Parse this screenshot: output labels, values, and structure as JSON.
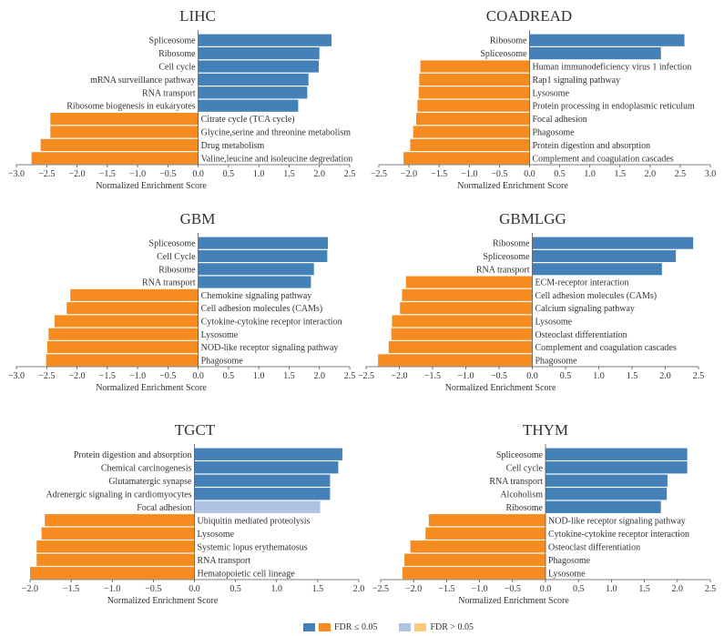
{
  "colors": {
    "pos_sig": "#4481b8",
    "neg_sig": "#f68b1f",
    "pos_nonsig": "#aec3e1",
    "neg_nonsig": "#fdcb78"
  },
  "legend": {
    "sig_label": "FDR ≤ 0.05",
    "nonsig_label": "FDR > 0.05"
  },
  "chart_data": [
    {
      "type": "bar",
      "orientation": "horizontal",
      "title": "LIHC",
      "xlabel": "Normalized Enrichment Score",
      "xlim": [
        -3.0,
        2.5
      ],
      "xticks": [
        "−3.0",
        "−2.5",
        "−2.0",
        "−1.5",
        "−1.0",
        "−0.5",
        "0.0",
        "0.5",
        "1.0",
        "1.5",
        "2.0",
        "2.5"
      ],
      "bars": [
        {
          "label": "Spliceosome",
          "value": 2.2,
          "significant": true
        },
        {
          "label": "Ribosome",
          "value": 2.0,
          "significant": true
        },
        {
          "label": "Cell cycle",
          "value": 1.99,
          "significant": true
        },
        {
          "label": "mRNA surveillance pathway",
          "value": 1.82,
          "significant": true
        },
        {
          "label": "RNA transport",
          "value": 1.8,
          "significant": true
        },
        {
          "label": "Ribosome biogenesis in eukaryotes",
          "value": 1.65,
          "significant": true
        },
        {
          "label": "Citrate cycle (TCA cycle)",
          "value": -2.44,
          "significant": true
        },
        {
          "label": "Glycine,serine and threonine metabolism",
          "value": -2.44,
          "significant": true
        },
        {
          "label": "Drug metabolism",
          "value": -2.6,
          "significant": true
        },
        {
          "label": "Valine,leucine and isoleucine degredation",
          "value": -2.75,
          "significant": true
        }
      ]
    },
    {
      "type": "bar",
      "orientation": "horizontal",
      "title": "COADREAD",
      "xlabel": "Normalized Enrichment Score",
      "xlim": [
        -2.5,
        3.0
      ],
      "xticks": [
        "−2.5",
        "−2.0",
        "−1.5",
        "−1.0",
        "−0.5",
        "0.0",
        "0.5",
        "1.0",
        "1.5",
        "2.0",
        "2.5",
        "3.0"
      ],
      "bars": [
        {
          "label": "Ribosome",
          "value": 2.57,
          "significant": true
        },
        {
          "label": "Spliceosome",
          "value": 2.18,
          "significant": true
        },
        {
          "label": "Human immunodeficiency virus 1 infection",
          "value": -1.81,
          "significant": true
        },
        {
          "label": "Rap1 signaling pathway",
          "value": -1.83,
          "significant": true
        },
        {
          "label": "Lysosome",
          "value": -1.84,
          "significant": true
        },
        {
          "label": "Protein processing in endoplasmic reticulum",
          "value": -1.86,
          "significant": true
        },
        {
          "label": "Focal adhesion",
          "value": -1.88,
          "significant": true
        },
        {
          "label": "Phagosome",
          "value": -1.93,
          "significant": true
        },
        {
          "label": "Protein digestion and absorption",
          "value": -1.98,
          "significant": true
        },
        {
          "label": "Complement and coagulation cascades",
          "value": -2.09,
          "significant": true
        }
      ]
    },
    {
      "type": "bar",
      "orientation": "horizontal",
      "title": "GBM",
      "xlabel": "Normalized Enrichment Score",
      "xlim": [
        -3.0,
        2.5
      ],
      "xticks": [
        "−3.0",
        "−2.5",
        "−2.0",
        "−1.5",
        "−1.0",
        "−0.5",
        "0.0",
        "0.5",
        "1.0",
        "1.5",
        "2.0",
        "2.5"
      ],
      "bars": [
        {
          "label": "Spliceosome",
          "value": 2.14,
          "significant": true
        },
        {
          "label": "Cell Cycle",
          "value": 2.13,
          "significant": true
        },
        {
          "label": "Ribosome",
          "value": 1.91,
          "significant": true
        },
        {
          "label": "RNA transport",
          "value": 1.86,
          "significant": true
        },
        {
          "label": "Chemokine signaling pathway",
          "value": -2.11,
          "significant": true
        },
        {
          "label": "Cell adhesion molecules (CAMs)",
          "value": -2.17,
          "significant": true
        },
        {
          "label": "Cytokine-cytokine receptor interaction",
          "value": -2.37,
          "significant": true
        },
        {
          "label": "Lysosome",
          "value": -2.47,
          "significant": true
        },
        {
          "label": "NOD-like receptor signaling pathway",
          "value": -2.49,
          "significant": true
        },
        {
          "label": "Phagosome",
          "value": -2.51,
          "significant": true
        }
      ]
    },
    {
      "type": "bar",
      "orientation": "horizontal",
      "title": "GBMLGG",
      "xlabel": "Normalized Enrichment Score",
      "xlim": [
        -2.5,
        2.5
      ],
      "xticks": [
        "−2.5",
        "−2.0",
        "−1.5",
        "−1.0",
        "−0.5",
        "0.0",
        "0.5",
        "1.0",
        "1.5",
        "2.0",
        "2.5"
      ],
      "bars": [
        {
          "label": "Ribosome",
          "value": 2.42,
          "significant": true
        },
        {
          "label": "Spliceosome",
          "value": 2.16,
          "significant": true
        },
        {
          "label": "RNA transport",
          "value": 1.95,
          "significant": true
        },
        {
          "label": "ECM-receptor interaction",
          "value": -1.9,
          "significant": true
        },
        {
          "label": "Cell adhesion molecules (CAMs)",
          "value": -1.96,
          "significant": true
        },
        {
          "label": "Calcium signaling pathway",
          "value": -1.99,
          "significant": true
        },
        {
          "label": "Lysosome",
          "value": -2.11,
          "significant": true
        },
        {
          "label": "Osteoclast differentiation",
          "value": -2.12,
          "significant": true
        },
        {
          "label": "Complement and coagulation cascades",
          "value": -2.16,
          "significant": true
        },
        {
          "label": "Phagosome",
          "value": -2.32,
          "significant": true
        }
      ]
    },
    {
      "type": "bar",
      "orientation": "horizontal",
      "title": "TGCT",
      "xlabel": "Normalized Enrichment Score",
      "xlim": [
        -2.0,
        2.0
      ],
      "xticks": [
        "−2.0",
        "−1.5",
        "−1.0",
        "−0.5",
        "0.0",
        "0.5",
        "1.0",
        "1.5",
        "2.0"
      ],
      "bars": [
        {
          "label": "Protein digestion and absorption",
          "value": 1.8,
          "significant": true
        },
        {
          "label": "Chemical carcinogenesis",
          "value": 1.75,
          "significant": true
        },
        {
          "label": "Glutamatergic synapse",
          "value": 1.65,
          "significant": true
        },
        {
          "label": "Adrenergic signaling in cardiomyocytes",
          "value": 1.65,
          "significant": true
        },
        {
          "label": "Focal adhesion",
          "value": 1.53,
          "significant": false
        },
        {
          "label": "Ubiquitin mediated proteolysis",
          "value": -1.82,
          "significant": true
        },
        {
          "label": "Lysosome",
          "value": -1.86,
          "significant": true
        },
        {
          "label": "Systemic lopus erythematosus",
          "value": -1.92,
          "significant": true
        },
        {
          "label": "RNA transport",
          "value": -1.92,
          "significant": true
        },
        {
          "label": "Hematopoietic cell lineage",
          "value": -2.0,
          "significant": true
        }
      ]
    },
    {
      "type": "bar",
      "orientation": "horizontal",
      "title": "THYM",
      "xlabel": "Normalized Enrichment Score",
      "xlim": [
        -2.5,
        2.5
      ],
      "xticks": [
        "−2.5",
        "−2.0",
        "−1.5",
        "−1.0",
        "−0.5",
        "0.0",
        "0.5",
        "1.0",
        "1.5",
        "2.0",
        "2.5"
      ],
      "bars": [
        {
          "label": "Spliceosome",
          "value": 2.15,
          "significant": true
        },
        {
          "label": "Cell cycle",
          "value": 2.15,
          "significant": true
        },
        {
          "label": "RNA transport",
          "value": 1.85,
          "significant": true
        },
        {
          "label": "Alcoholism",
          "value": 1.84,
          "significant": true
        },
        {
          "label": "Ribosome",
          "value": 1.75,
          "significant": true
        },
        {
          "label": "NOD-like receptor signaling pathway",
          "value": -1.77,
          "significant": true
        },
        {
          "label": "Cytokine-cytokine receptor interaction",
          "value": -1.82,
          "significant": true
        },
        {
          "label": "Osteoclast differentiation",
          "value": -2.05,
          "significant": true
        },
        {
          "label": "Phagosome",
          "value": -2.14,
          "significant": true
        },
        {
          "label": "Lysosome",
          "value": -2.17,
          "significant": true
        }
      ]
    }
  ]
}
